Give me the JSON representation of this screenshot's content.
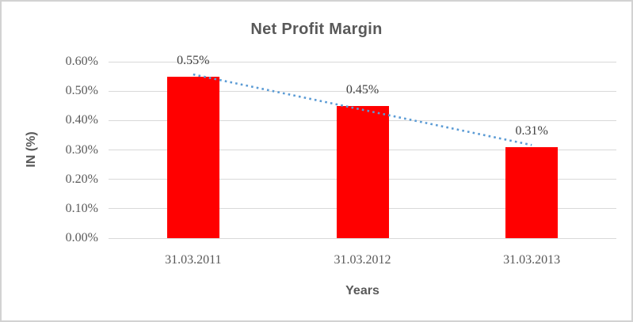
{
  "chart_data": {
    "type": "bar",
    "title": "Net Profit Margin",
    "xlabel": "Years",
    "ylabel": "IN (%)",
    "categories": [
      "31.03.2011",
      "31.03.2012",
      "31.03.2013"
    ],
    "values": [
      0.55,
      0.45,
      0.31
    ],
    "data_labels": [
      "0.55%",
      "0.45%",
      "0.31%"
    ],
    "yticks": [
      "0.00%",
      "0.10%",
      "0.20%",
      "0.30%",
      "0.40%",
      "0.50%",
      "0.60%"
    ],
    "ylim": [
      0,
      0.6
    ],
    "grid": true,
    "legend": false,
    "trendline": {
      "type": "linear",
      "style": "dotted"
    }
  },
  "colors": {
    "bar": "#ff0000",
    "trendline": "#5b9bd5",
    "gridline": "#d9d9d9",
    "title_text": "#595959",
    "tick_text": "#595959",
    "data_label_text": "#404040",
    "frame_border": "#d2d2d2",
    "background": "#ffffff"
  }
}
